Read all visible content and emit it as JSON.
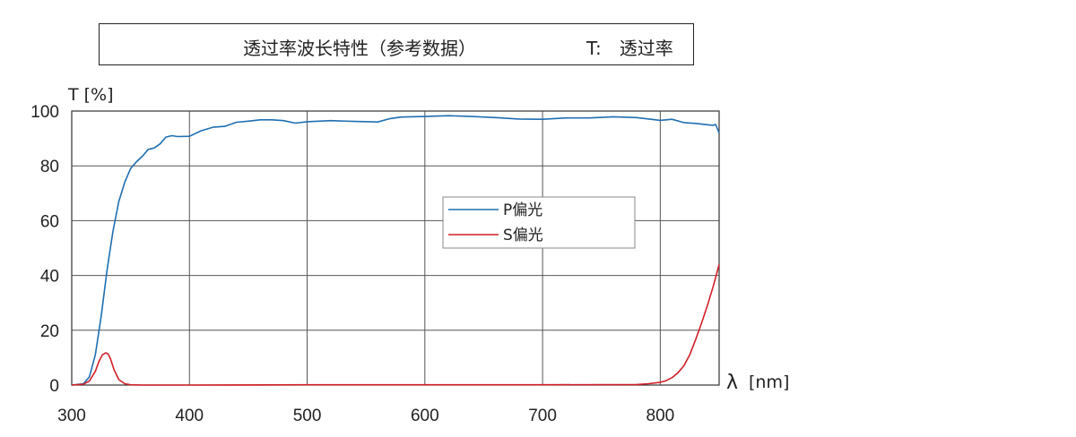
{
  "header": {
    "title": "透过率波长特性（参考数据）",
    "note": "T:　透过率"
  },
  "chart_data": {
    "type": "line",
    "xlabel": "λ",
    "xunit": "[nm]",
    "ylabel": "T [%]",
    "xlim": [
      300,
      850
    ],
    "ylim": [
      0,
      100
    ],
    "xticks": [
      300,
      400,
      500,
      600,
      700,
      800
    ],
    "yticks": [
      0,
      20,
      40,
      60,
      80,
      100
    ],
    "grid": true,
    "legend_position": "center-right",
    "series": [
      {
        "name": "P偏光",
        "color": "#1f6fb2",
        "x": [
          300,
          310,
          315,
          320,
          325,
          330,
          335,
          340,
          345,
          350,
          355,
          360,
          365,
          370,
          375,
          380,
          385,
          390,
          400,
          410,
          420,
          430,
          440,
          450,
          460,
          470,
          480,
          490,
          500,
          520,
          540,
          560,
          570,
          580,
          600,
          620,
          640,
          660,
          680,
          700,
          720,
          740,
          760,
          780,
          800,
          810,
          820,
          830,
          840,
          845,
          847,
          850
        ],
        "y": [
          0,
          0.5,
          3,
          11,
          25,
          42,
          56,
          67,
          74,
          79,
          81.5,
          83.5,
          86,
          86.5,
          88,
          90.5,
          91,
          90.7,
          90.8,
          92.8,
          94.1,
          94.4,
          95.9,
          96.3,
          96.8,
          96.8,
          96.5,
          95.6,
          96.1,
          96.5,
          96.2,
          96.0,
          97.2,
          97.8,
          98.0,
          98.3,
          98.0,
          97.6,
          97.1,
          97.0,
          97.5,
          97.5,
          97.9,
          97.6,
          96.6,
          97.0,
          95.8,
          95.5,
          95.0,
          94.8,
          95.1,
          92.0
        ]
      },
      {
        "name": "S偏光",
        "color": "#d11f26",
        "x": [
          300,
          310,
          315,
          320,
          323,
          326,
          329,
          331,
          333,
          336,
          340,
          345,
          350,
          360,
          400,
          500,
          600,
          700,
          780,
          790,
          800,
          805,
          810,
          815,
          820,
          825,
          830,
          835,
          840,
          845,
          850
        ],
        "y": [
          0,
          0.3,
          1.5,
          5,
          8.5,
          11,
          11.8,
          11.3,
          9.5,
          5.5,
          2,
          0.5,
          0.1,
          0,
          0,
          0.1,
          0.1,
          0.1,
          0.2,
          0.5,
          1,
          1.6,
          2.7,
          4.5,
          7,
          11,
          16.5,
          22.5,
          29,
          36,
          44
        ]
      }
    ]
  }
}
